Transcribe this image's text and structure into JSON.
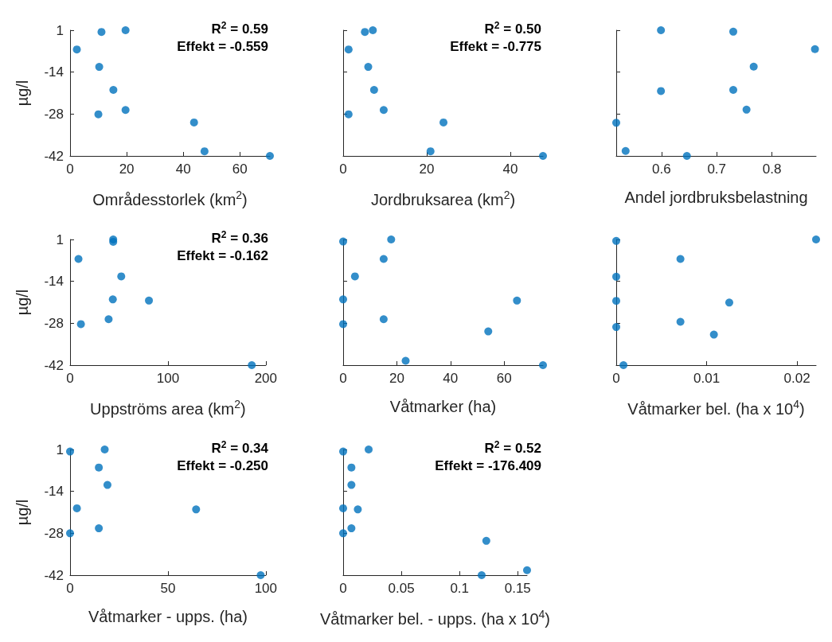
{
  "chart_data": [
    {
      "type": "scatter",
      "xlabel": "Områdesstorlek (km$^{2}$)",
      "ylabel": "µg/l",
      "annotations": [
        "R$^{2}$ = 0.59",
        "Effekt = -0.559"
      ],
      "color": "#0072bd",
      "marker": "circle",
      "grid": false,
      "xlim": [
        0,
        70.6
      ],
      "xticks": [
        0,
        20,
        40,
        60
      ],
      "ylim": [
        -42.4,
        0.8
      ],
      "yticks": [
        {
          "value": 0.8,
          "label": "1"
        },
        {
          "value": -13.6,
          "label": "-14"
        },
        {
          "value": -28,
          "label": "-28"
        },
        {
          "value": -42.4,
          "label": "-42"
        }
      ],
      "x": [
        2.4,
        11.1,
        19.6,
        10.3,
        15.3,
        10.0,
        19.6,
        43.8,
        47.5,
        70.6
      ],
      "values": [
        -5.8,
        0.2,
        0.8,
        -11.8,
        -19.7,
        -28.1,
        -26.6,
        -30.9,
        -40.8,
        -42.4
      ]
    },
    {
      "type": "scatter",
      "xlabel": "Jordbruksarea (km$^{2}$)",
      "annotations": [
        "R$^{2}$ = 0.50",
        "Effekt = -0.775"
      ],
      "color": "#0072bd",
      "marker": "circle",
      "grid": false,
      "tick_labels": "x",
      "xlim": [
        0,
        47.8
      ],
      "xticks": [
        0,
        20,
        40
      ],
      "ylim": [
        -42.4,
        0.8
      ],
      "yticks": [
        {
          "value": 0.8,
          "label": null
        },
        {
          "value": -13.6,
          "label": null
        },
        {
          "value": -28,
          "label": null
        },
        {
          "value": -42.4,
          "label": null
        }
      ],
      "x": [
        7.1,
        5.2,
        1.3,
        6.0,
        7.4,
        1.3,
        9.7,
        24.0,
        20.9,
        47.8
      ],
      "values": [
        0.8,
        0.2,
        -5.8,
        -11.8,
        -19.7,
        -28.1,
        -26.6,
        -30.9,
        -40.8,
        -42.4
      ]
    },
    {
      "type": "scatter",
      "xlabel": "Andel jordbruksbelastning",
      "color": "#0072bd",
      "marker": "circle",
      "grid": false,
      "tick_labels": "x",
      "xlim": [
        0.518,
        0.88
      ],
      "xticks": [
        0.6,
        0.7,
        0.8
      ],
      "ylim": [
        -42.4,
        0.8
      ],
      "yticks": [
        {
          "value": 0.8,
          "label": null
        },
        {
          "value": -13.6,
          "label": null
        },
        {
          "value": -28,
          "label": null
        },
        {
          "value": -42.4,
          "label": null
        }
      ],
      "x": [
        0.599,
        0.73,
        0.878,
        0.767,
        0.599,
        0.73,
        0.754,
        0.518,
        0.535,
        0.646
      ],
      "values": [
        0.8,
        0.3,
        -5.7,
        -11.7,
        -20.1,
        -19.7,
        -26.5,
        -31.0,
        -40.7,
        -42.4
      ]
    },
    {
      "type": "scatter",
      "xlabel": "Uppströms area (km$^{2}$)",
      "ylabel": "µg/l",
      "annotations": [
        "R$^{2}$ = 0.36",
        "Effekt = -0.162"
      ],
      "color": "#0072bd",
      "marker": "circle",
      "grid": false,
      "xlim": [
        0,
        200
      ],
      "xticks": [
        0,
        100,
        200
      ],
      "ylim": [
        -42.4,
        0.8
      ],
      "yticks": [
        {
          "value": 0.8,
          "label": "1"
        },
        {
          "value": -13.6,
          "label": "-14"
        },
        {
          "value": -28,
          "label": "-28"
        },
        {
          "value": -42.4,
          "label": "-42"
        }
      ],
      "x": [
        44.1,
        44.1,
        8.6,
        52.3,
        43.7,
        80.6,
        39.4,
        11.1,
        185.7
      ],
      "values": [
        0.8,
        0.0,
        -5.9,
        -11.9,
        -19.8,
        -20.2,
        -26.6,
        -28.3,
        -42.4
      ]
    },
    {
      "type": "scatter",
      "xlabel": "Våtmarker (ha)",
      "color": "#0072bd",
      "marker": "circle",
      "grid": false,
      "tick_labels": "x",
      "xlim": [
        0,
        74.5
      ],
      "xticks": [
        0,
        20,
        40,
        60
      ],
      "ylim": [
        -42.4,
        0.8
      ],
      "yticks": [
        {
          "value": 0.8,
          "label": null
        },
        {
          "value": -13.6,
          "label": null
        },
        {
          "value": -28,
          "label": null
        },
        {
          "value": -42.4,
          "label": null
        }
      ],
      "x": [
        0,
        17.9,
        15.1,
        4.4,
        0,
        64.8,
        15.1,
        0,
        54.1,
        23.3,
        74.5
      ],
      "values": [
        0.1,
        0.8,
        -5.9,
        -11.9,
        -19.8,
        -20.2,
        -26.6,
        -28.3,
        -30.8,
        -40.9,
        -42.4
      ]
    },
    {
      "type": "scatter",
      "xlabel": "Våtmarker bel. (ha x 10$^{4}$)",
      "color": "#0072bd",
      "marker": "circle",
      "grid": false,
      "tick_labels": "x",
      "xlim": [
        0,
        0.0221
      ],
      "xticks": [
        0,
        0.01,
        0.02
      ],
      "ylim": [
        -42.4,
        0.8
      ],
      "yticks": [
        {
          "value": 0.8,
          "label": null
        },
        {
          "value": -13.6,
          "label": null
        },
        {
          "value": -28,
          "label": null
        },
        {
          "value": -42.4,
          "label": null
        }
      ],
      "x": [
        0,
        0.0221,
        0.0071,
        0,
        0,
        0.0125,
        0,
        0.0071,
        0.0108,
        0.0008
      ],
      "values": [
        0.3,
        0.8,
        -5.9,
        -12.0,
        -20.3,
        -20.9,
        -29.3,
        -27.5,
        -31.9,
        -42.4
      ]
    },
    {
      "type": "scatter",
      "xlabel": "Våtmarker - upps. (ha)",
      "ylabel": "µg/l",
      "annotations": [
        "R$^{2}$ = 0.34",
        "Effekt = -0.250"
      ],
      "color": "#0072bd",
      "marker": "circle",
      "grid": false,
      "xlim": [
        0,
        100
      ],
      "xticks": [
        0,
        50,
        100
      ],
      "ylim": [
        -42.4,
        0.8
      ],
      "yticks": [
        {
          "value": 0.8,
          "label": "1"
        },
        {
          "value": -13.6,
          "label": "-14"
        },
        {
          "value": -28,
          "label": "-28"
        },
        {
          "value": -42.4,
          "label": "-42"
        }
      ],
      "x": [
        0,
        17.7,
        14.7,
        19.1,
        3.5,
        64.4,
        14.7,
        0,
        97.4
      ],
      "values": [
        0.1,
        0.8,
        -5.4,
        -11.4,
        -19.4,
        -19.8,
        -26.3,
        -28.0,
        -42.4
      ]
    },
    {
      "type": "scatter",
      "xlabel": "Våtmarker bel. - upps. (ha x 10$^{4}$)",
      "annotations": [
        "R$^{2}$ = 0.52",
        "Effekt = -176.409"
      ],
      "color": "#0072bd",
      "marker": "circle",
      "grid": false,
      "tick_labels": "x",
      "xlim": [
        0,
        0.158
      ],
      "xticks": [
        0,
        0.05,
        0.1,
        0.15
      ],
      "ylim": [
        -42.4,
        0.8
      ],
      "yticks": [
        {
          "value": 0.8,
          "label": null
        },
        {
          "value": -13.6,
          "label": null
        },
        {
          "value": -28,
          "label": null
        },
        {
          "value": -42.4,
          "label": null
        }
      ],
      "x": [
        0,
        0.0219,
        0.0071,
        0.0071,
        0,
        0.0126,
        0.0071,
        0,
        0.123,
        0.119,
        0.158
      ],
      "values": [
        0.1,
        0.8,
        -5.4,
        -11.4,
        -19.4,
        -19.8,
        -26.3,
        -28.0,
        -30.6,
        -42.4,
        -40.7
      ]
    }
  ]
}
